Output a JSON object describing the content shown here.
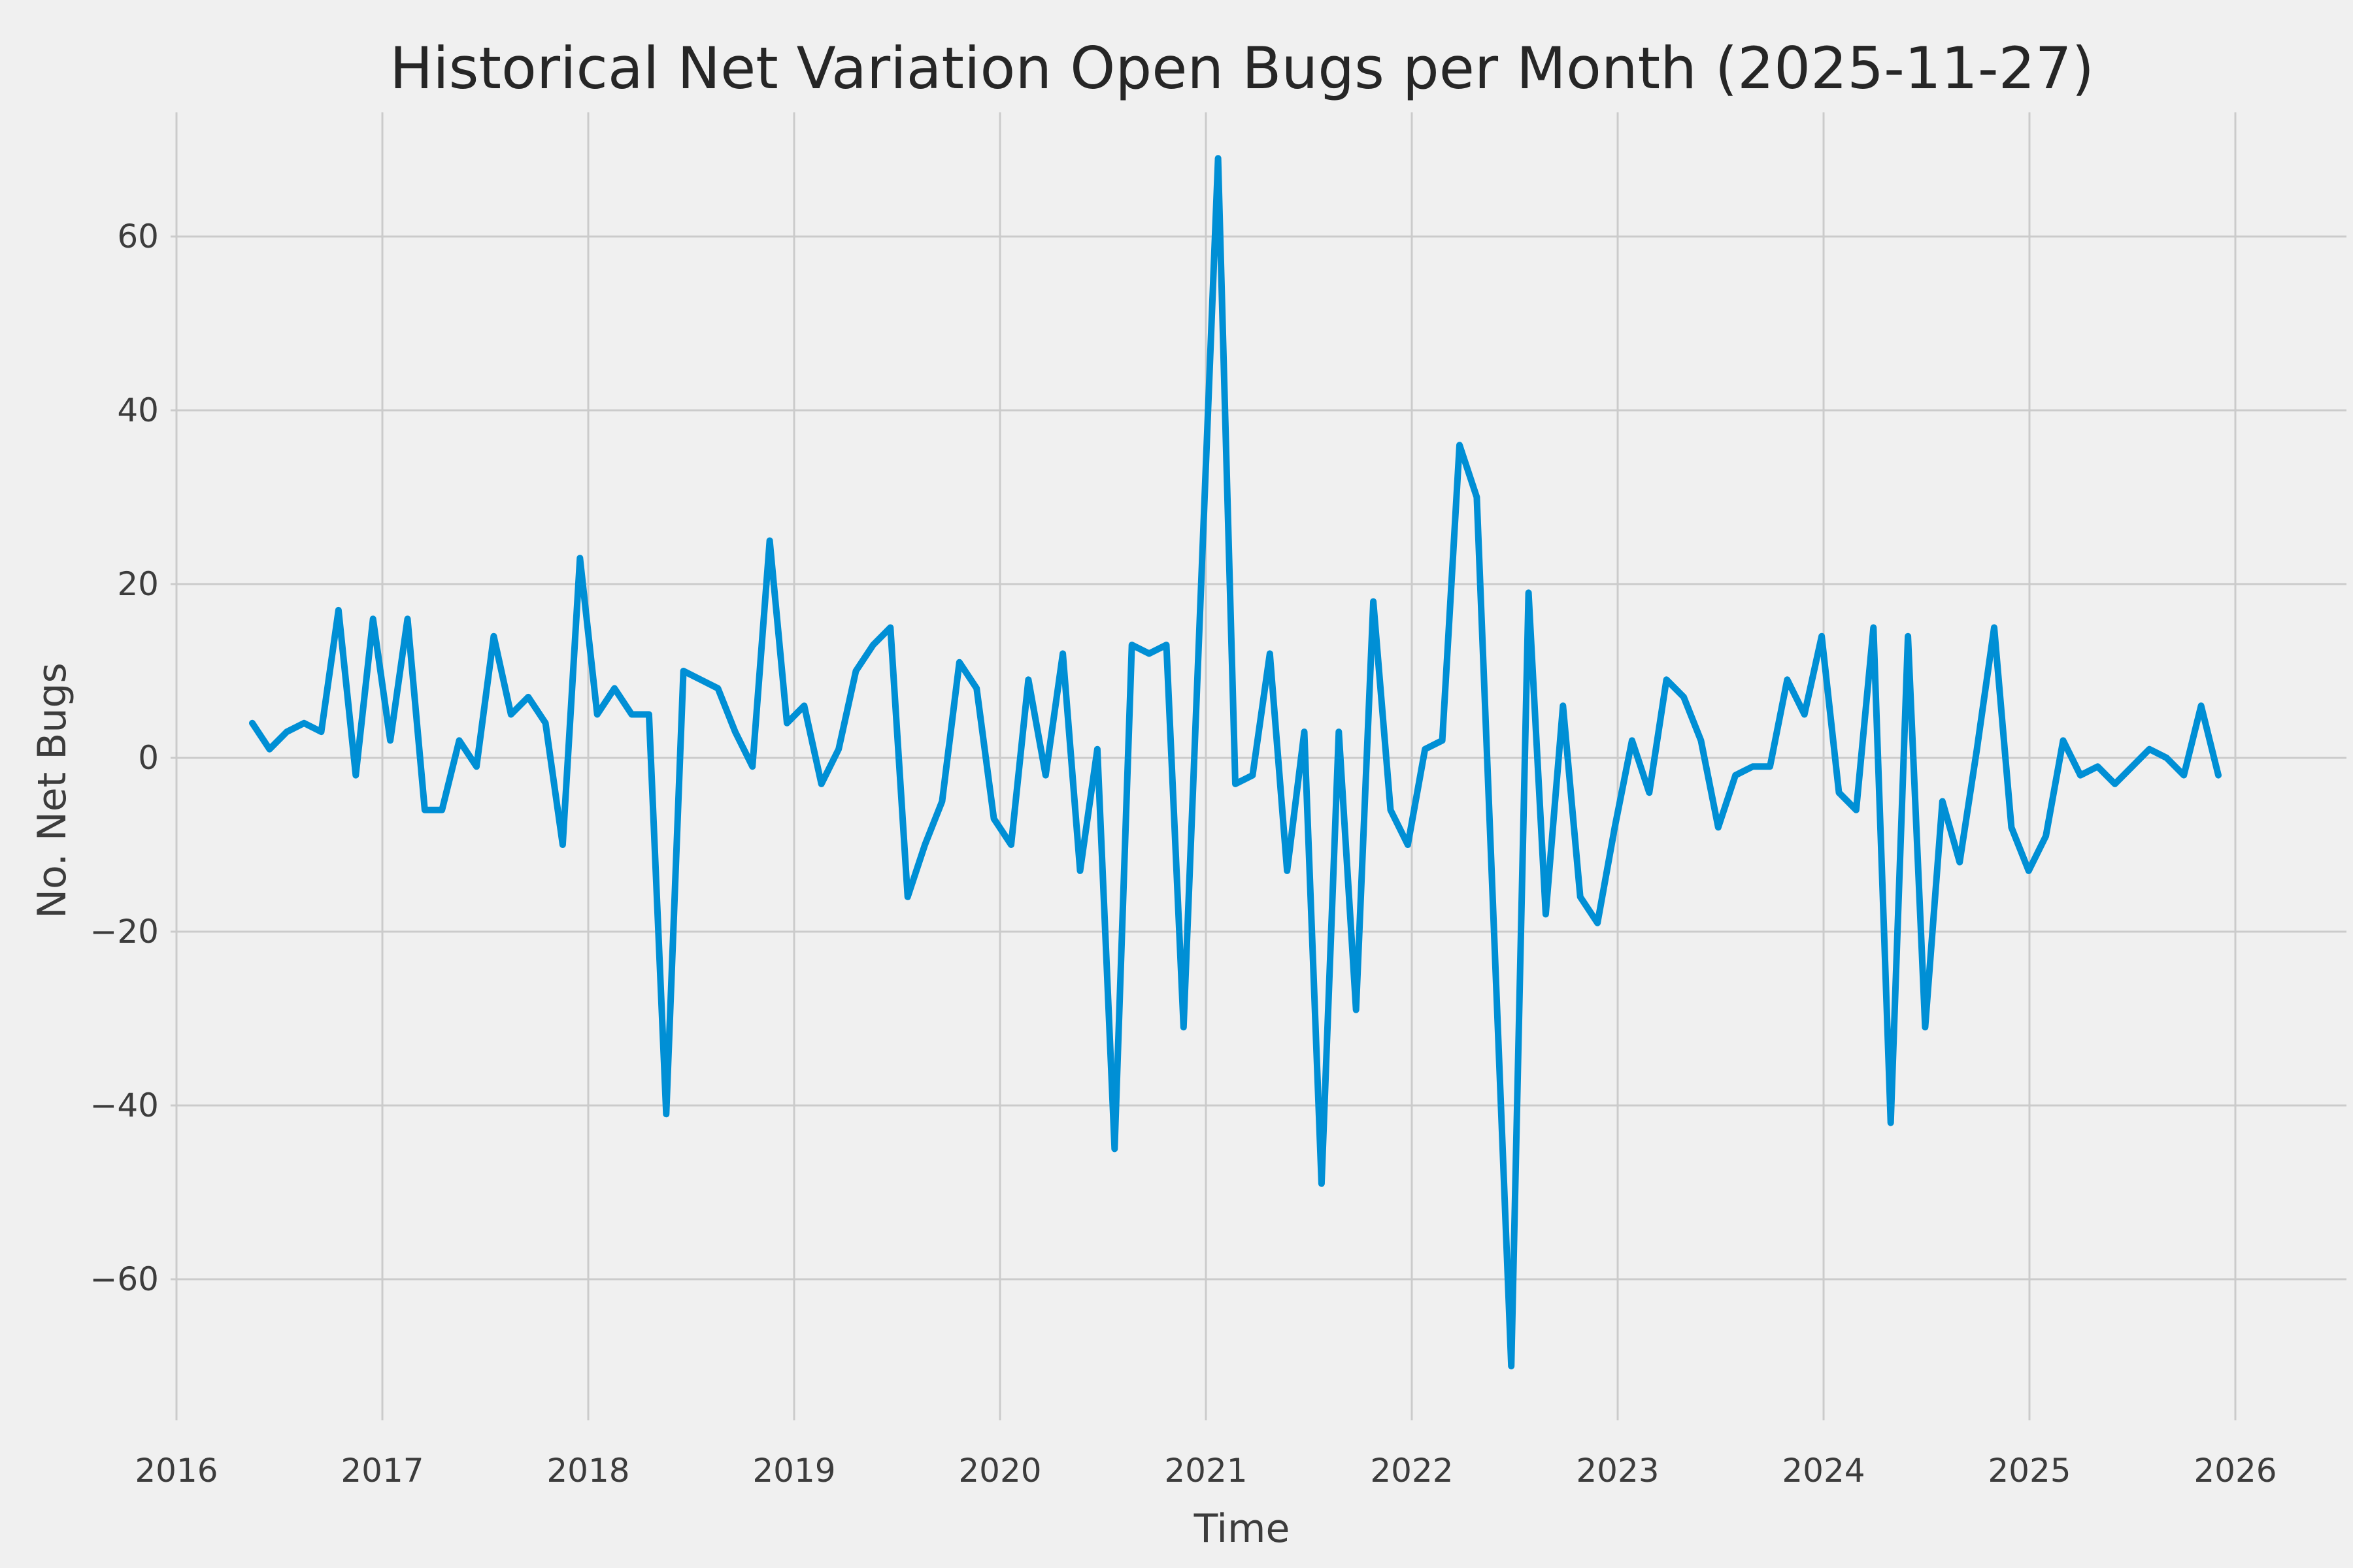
{
  "figure": {
    "title": "Historical Net Variation Open Bugs per Month (2025-11-27)",
    "background_color": "#f0f0f0",
    "grid_color": "#cbcbcb",
    "text_color": "#3c3c3c",
    "line_color": "#008fd5",
    "line_width": 10
  },
  "chart_data": {
    "type": "line",
    "title": "Historical Net Variation Open Bugs per Month (2025-11-27)",
    "xlabel": "Time",
    "ylabel": "No. Net Bugs",
    "legend": null,
    "grid": true,
    "xlim_years": [
      2015.97,
      2026.53
    ],
    "ylim": [
      -76,
      74
    ],
    "xticks": [
      2016,
      2017,
      2018,
      2019,
      2020,
      2021,
      2022,
      2023,
      2024,
      2025,
      2026
    ],
    "yticks": [
      60,
      40,
      20,
      0,
      -20,
      -40,
      -60
    ],
    "x": [
      "2016-05",
      "2016-06",
      "2016-07",
      "2016-08",
      "2016-09",
      "2016-10",
      "2016-11",
      "2016-12",
      "2017-01",
      "2017-02",
      "2017-03",
      "2017-04",
      "2017-05",
      "2017-06",
      "2017-07",
      "2017-08",
      "2017-09",
      "2017-10",
      "2017-11",
      "2017-12",
      "2018-01",
      "2018-02",
      "2018-03",
      "2018-04",
      "2018-05",
      "2018-06",
      "2018-07",
      "2018-08",
      "2018-09",
      "2018-10",
      "2018-11",
      "2018-12",
      "2019-01",
      "2019-02",
      "2019-03",
      "2019-04",
      "2019-05",
      "2019-06",
      "2019-07",
      "2019-08",
      "2019-09",
      "2019-10",
      "2019-11",
      "2019-12",
      "2020-01",
      "2020-02",
      "2020-03",
      "2020-04",
      "2020-05",
      "2020-06",
      "2020-07",
      "2020-08",
      "2020-09",
      "2020-10",
      "2020-11",
      "2020-12",
      "2021-01",
      "2021-02",
      "2021-03",
      "2021-04",
      "2021-05",
      "2021-06",
      "2021-07",
      "2021-08",
      "2021-09",
      "2021-10",
      "2021-11",
      "2021-12",
      "2022-01",
      "2022-02",
      "2022-03",
      "2022-04",
      "2022-05",
      "2022-06",
      "2022-07",
      "2022-08",
      "2022-09",
      "2022-10",
      "2022-11",
      "2022-12",
      "2023-01",
      "2023-02",
      "2023-03",
      "2023-04",
      "2023-05",
      "2023-06",
      "2023-07",
      "2023-08",
      "2023-09",
      "2023-10",
      "2023-11",
      "2023-12",
      "2024-01",
      "2024-02",
      "2024-03",
      "2024-04",
      "2024-05",
      "2024-06",
      "2024-07",
      "2024-08",
      "2024-09",
      "2024-10",
      "2024-11",
      "2024-12",
      "2025-01",
      "2025-02",
      "2025-03",
      "2025-04",
      "2025-05",
      "2025-06",
      "2025-07",
      "2025-08",
      "2025-09",
      "2025-10",
      "2025-11"
    ],
    "values": [
      4,
      1,
      3,
      4,
      3,
      17,
      -2,
      16,
      2,
      16,
      -6,
      -6,
      2,
      -1,
      14,
      5,
      7,
      4,
      -10,
      23,
      5,
      8,
      5,
      5,
      -41,
      10,
      9,
      8,
      3,
      -1,
      25,
      4,
      6,
      -3,
      1,
      10,
      13,
      15,
      -16,
      -10,
      -5,
      11,
      8,
      -7,
      -10,
      9,
      -2,
      12,
      -13,
      1,
      -45,
      13,
      12,
      13,
      -31,
      19,
      69,
      -3,
      -2,
      12,
      -13,
      3,
      -49,
      3,
      -29,
      18,
      -6,
      -10,
      1,
      2,
      36,
      30,
      -20,
      -70,
      19,
      -18,
      6,
      -16,
      -19,
      -8,
      2,
      -4,
      9,
      7,
      2,
      -8,
      -2,
      -1,
      -1,
      9,
      5,
      14,
      -4,
      -6,
      15,
      -42,
      14,
      -31,
      -5,
      -12,
      1,
      15,
      -8,
      -13,
      -9,
      2,
      -2,
      -1,
      -3,
      -1,
      1,
      0,
      -2,
      6,
      -2
    ]
  }
}
